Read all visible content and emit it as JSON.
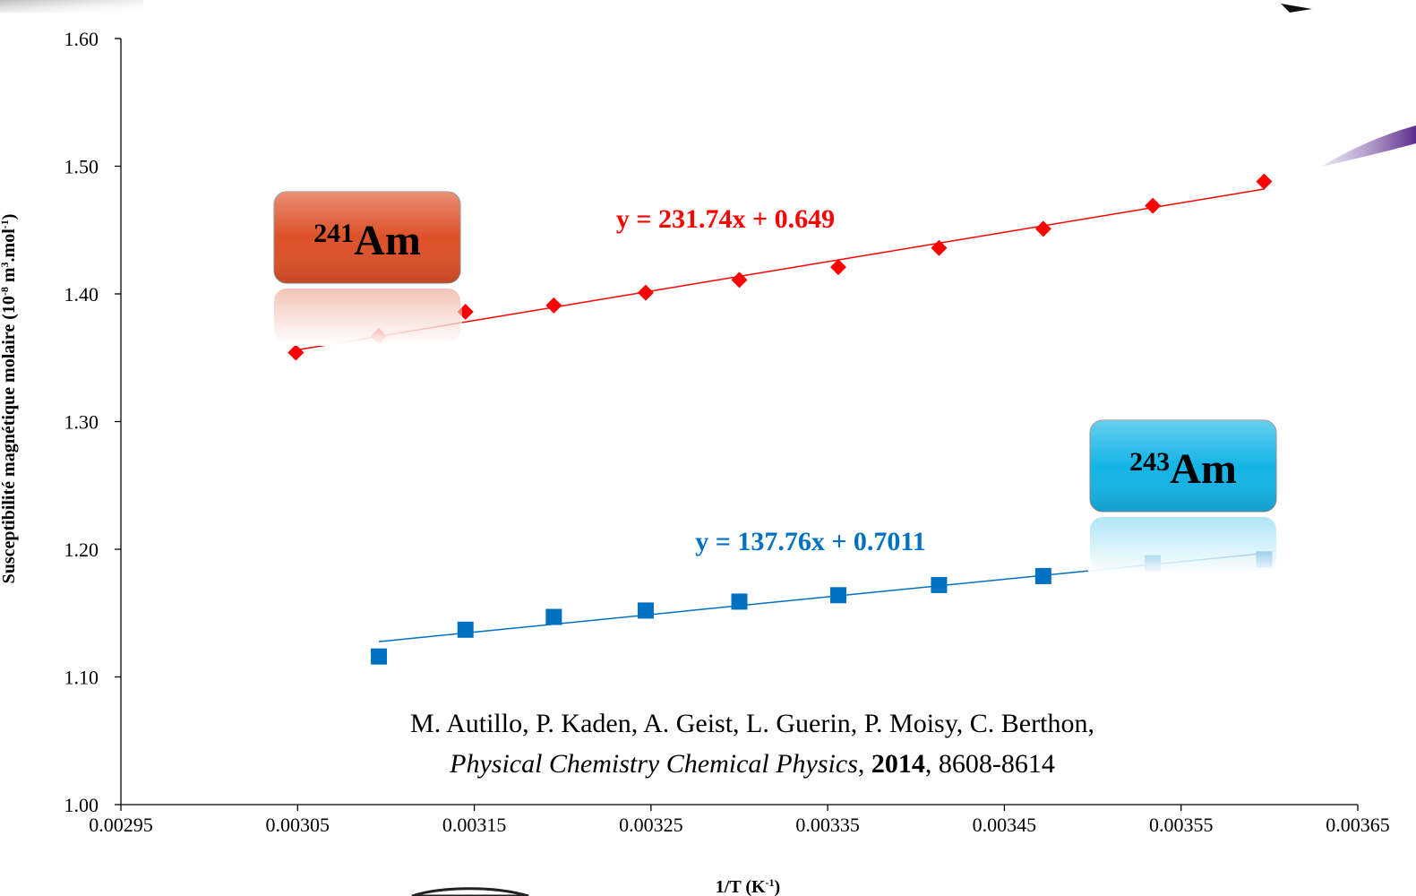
{
  "chart_data": {
    "type": "scatter",
    "xlim": [
      0.00295,
      0.00365
    ],
    "xticks": [
      0.00295,
      0.00305,
      0.00315,
      0.00325,
      0.00335,
      0.00345,
      0.00355,
      0.00365
    ],
    "ylim": [
      1.0,
      1.6
    ],
    "yticks": [
      {
        "value": 1.0,
        "label": "1.00"
      },
      {
        "value": 1.1,
        "label": "1.10"
      },
      {
        "value": 1.2,
        "label": "1.20"
      },
      {
        "value": 1.3,
        "label": "1.30"
      },
      {
        "value": 1.4,
        "label": "1.40"
      },
      {
        "value": 1.5,
        "label": "1.50"
      },
      {
        "value": 1.6,
        "label": "1.60"
      }
    ],
    "x_title": [
      {
        "text": "1/T (K"
      },
      {
        "text": "-1",
        "sup": true
      },
      {
        "text": ")"
      }
    ],
    "y_title": [
      {
        "text": "Susceptibilité magnétique molaire (10"
      },
      {
        "text": "-8",
        "sup": true
      },
      {
        "text": " m"
      },
      {
        "text": "3",
        "sup": true
      },
      {
        "text": ".mol"
      },
      {
        "text": "-1",
        "sup": true
      },
      {
        "text": ")"
      }
    ],
    "series": [
      {
        "isotope": "241",
        "name": "Am",
        "color": "#ff0000",
        "marker": "diamond",
        "box_color": "#dd5128",
        "equation": "y = 231.74x + 0.649",
        "x": [
          0.003049,
          0.003096,
          0.003145,
          0.003195,
          0.003247,
          0.0033,
          0.003356,
          0.003413,
          0.003472,
          0.003534,
          0.003597
        ],
        "values": [
          1.354,
          1.367,
          1.386,
          1.391,
          1.401,
          1.411,
          1.421,
          1.436,
          1.451,
          1.469,
          1.488
        ]
      },
      {
        "isotope": "243",
        "name": "Am",
        "color": "#0070c0",
        "marker": "square",
        "box_color": "#14b4e6",
        "equation": "y = 137.76x + 0.7011",
        "x": [
          0.003096,
          0.003145,
          0.003195,
          0.003247,
          0.0033,
          0.003356,
          0.003413,
          0.003472,
          0.003534,
          0.003597
        ],
        "values": [
          1.116,
          1.137,
          1.147,
          1.152,
          1.159,
          1.164,
          1.172,
          1.179,
          1.189,
          1.192
        ]
      }
    ],
    "citation": {
      "line1": "M. Autillo, P. Kaden, A. Geist, L. Guerin, P. Moisy, C. Berthon,",
      "line2": [
        {
          "text": "Physical Chemistry Chemical Physics",
          "style": "italic"
        },
        {
          "text": ", "
        },
        {
          "text": "2014",
          "style": "bold"
        },
        {
          "text": ", 8608-8614"
        }
      ]
    }
  }
}
